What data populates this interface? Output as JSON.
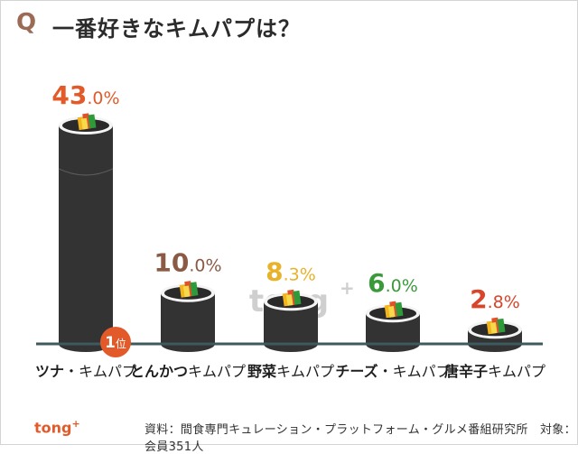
{
  "header": {
    "q_mark": "Q",
    "title": "一番好きなキムパプは？"
  },
  "chart_data": {
    "type": "bar",
    "title": "一番好きなキムパプは？",
    "categories": [
      {
        "parts": [
          {
            "text": "ツナ",
            "bold": true
          },
          {
            "text": "・キムパプ",
            "bold": false
          }
        ]
      },
      {
        "parts": [
          {
            "text": "とんかつ",
            "bold": true
          },
          {
            "text": "キムパプ",
            "bold": false
          }
        ]
      },
      {
        "parts": [
          {
            "text": "野菜",
            "bold": true
          },
          {
            "text": "キムパプ",
            "bold": false
          }
        ]
      },
      {
        "parts": [
          {
            "text": "チーズ",
            "bold": true
          },
          {
            "text": "・キムパプ",
            "bold": false
          }
        ]
      },
      {
        "parts": [
          {
            "text": "唐辛子",
            "bold": true
          },
          {
            "text": "キムパプ",
            "bold": false
          }
        ]
      }
    ],
    "values": [
      43.0,
      10.0,
      8.3,
      6.0,
      2.8
    ],
    "labels": [
      {
        "int": "43",
        "dec": ".0%"
      },
      {
        "int": "10",
        "dec": ".0%"
      },
      {
        "int": "8",
        "dec": ".3%"
      },
      {
        "int": "6",
        "dec": ".0%"
      },
      {
        "int": "2",
        "dec": ".8%"
      }
    ],
    "label_colors": [
      "#e35a2a",
      "#8a5a44",
      "#e8b22a",
      "#3a9a3a",
      "#d8452b"
    ],
    "ylim": [
      0,
      43
    ],
    "rank_badge": {
      "text": "1",
      "suffix": "位",
      "color": "#e35a2a"
    },
    "bar_color": "#333333"
  },
  "watermark": {
    "text": "tong",
    "sup": "+"
  },
  "footer": {
    "logo": "tong",
    "logo_sup": "+",
    "source": "資料：間食専門キュレーション・プラットフォーム・グルメ番組研究所　対象：会員351人"
  }
}
